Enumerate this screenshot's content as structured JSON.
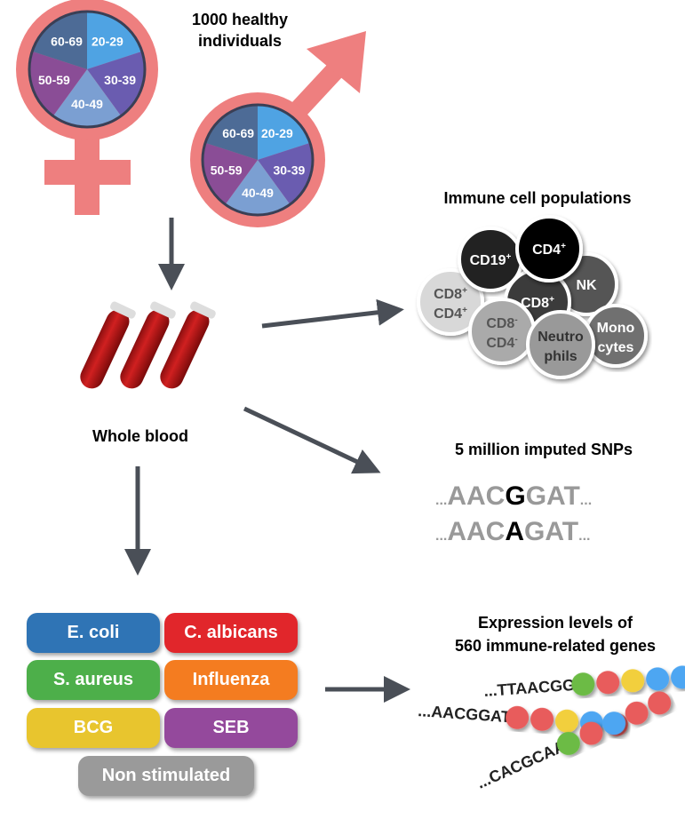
{
  "title": [
    "1000 healthy",
    "individuals"
  ],
  "age_groups": [
    "20-29",
    "30-39",
    "40-49",
    "50-59",
    "60-69"
  ],
  "age_colors": [
    "#4fa3e3",
    "#6a5cb0",
    "#7b9fd2",
    "#8a4d96",
    "#4d6b96"
  ],
  "symbol_color": "#ee7f7f",
  "whole_blood": "Whole blood",
  "immune": {
    "title": "Immune cell populations",
    "cells": [
      {
        "l1": "CD19",
        "s1": "+",
        "l2": "",
        "s2": ""
      },
      {
        "l1": "CD4",
        "s1": "+",
        "l2": "",
        "s2": ""
      },
      {
        "l1": "NK",
        "s1": "",
        "l2": "",
        "s2": ""
      },
      {
        "l1": "CD8",
        "s1": "+",
        "l2": "CD4",
        "s2": "+"
      },
      {
        "l1": "CD8",
        "s1": "+",
        "l2": "",
        "s2": ""
      },
      {
        "l1": "CD8",
        "s1": "-",
        "l2": "CD4",
        "s2": "-"
      },
      {
        "l1": "Neutro",
        "s1": "",
        "l2": "phils",
        "s2": ""
      },
      {
        "l1": "Mono",
        "s1": "",
        "l2": "cytes",
        "s2": ""
      }
    ]
  },
  "snps": {
    "title": "5 million imputed SNPs",
    "seq1": {
      "pre": "AAC",
      "var": "G",
      "post": "GAT"
    },
    "seq2": {
      "pre": "AAC",
      "var": "A",
      "post": "GAT"
    },
    "dots": "..."
  },
  "stimuli": [
    {
      "label": "E. coli",
      "color": "#2f74b5"
    },
    {
      "label": "C. albicans",
      "color": "#e1262b"
    },
    {
      "label": "S. aureus",
      "color": "#4daf4a"
    },
    {
      "label": "Influenza",
      "color": "#f47c20"
    },
    {
      "label": "BCG",
      "color": "#e8c52e"
    },
    {
      "label": "SEB",
      "color": "#94499c"
    },
    {
      "label": "Non stimulated",
      "color": "#9a9a9a"
    }
  ],
  "expression": {
    "title": [
      "Expression levels of",
      "560 immune-related genes"
    ],
    "seqs": [
      "...TTAACGG",
      "...AACGGAT",
      "...CACGCAA"
    ]
  }
}
